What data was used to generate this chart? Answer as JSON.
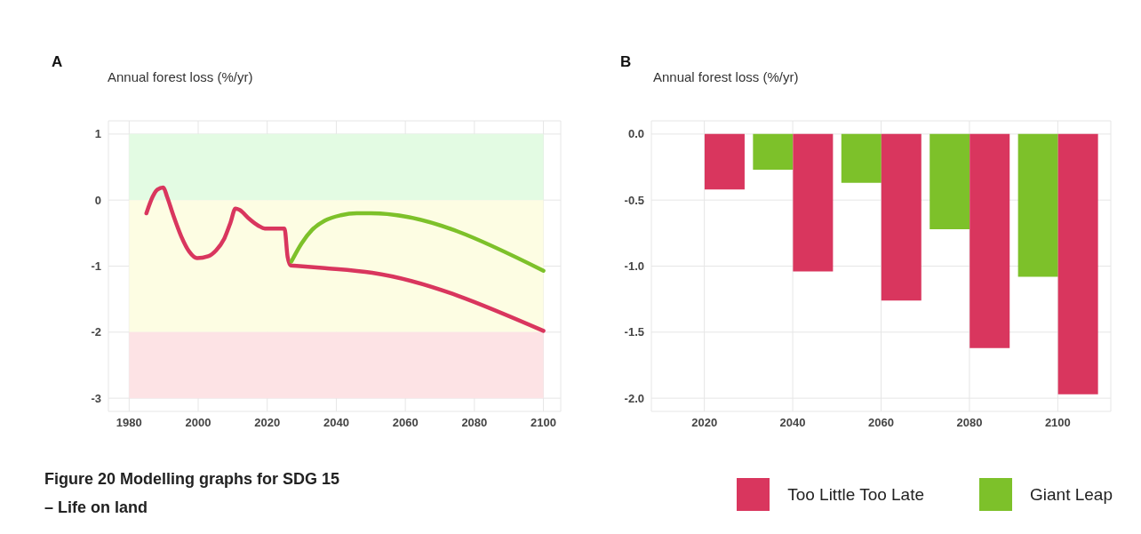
{
  "chart_data": [
    {
      "type": "line",
      "title": "A",
      "ylabel": "Annual forest loss (%/yr)",
      "annotations": [
        "Figure 20 Modelling graphs for SDG 15\n– Life on land"
      ],
      "series": [
        {
          "color": "#d9365e",
          "x": [
            1985,
            1986.8,
            1988.2,
            1989.9,
            1991,
            1992.8,
            1995.1,
            1997.4,
            1999.7,
            2002.9,
            2005.2,
            2007.5,
            2009.3,
            2010.8,
            2012,
            2014.7,
            2017.5,
            2019.3,
            2025,
            2025.9,
            2026.8,
            2029.4,
            2036.7,
            2050.4,
            2100
          ],
          "values": [
            -0.2,
            0.05,
            0.16,
            0.19,
            0.05,
            -0.23,
            -0.55,
            -0.78,
            -0.88,
            -0.85,
            -0.76,
            -0.59,
            -0.35,
            -0.13,
            -0.15,
            -0.28,
            -0.39,
            -0.43,
            -0.43,
            -0.86,
            -0.99,
            -1.0,
            -1.03,
            -1.1,
            -1.98
          ]
        },
        {
          "color": "#7dc12a",
          "x": [
            2027,
            2029.9,
            2033,
            2036.7,
            2041.3,
            2045.9,
            2050,
            2100
          ],
          "values": [
            -0.93,
            -0.66,
            -0.45,
            -0.31,
            -0.23,
            -0.2,
            -0.2,
            -1.07
          ]
        }
      ],
      "bands": [
        {
          "axis": "y",
          "from": 0,
          "to": 1,
          "color": "#e3fbe3"
        },
        {
          "axis": "y",
          "from": -2,
          "to": 0,
          "color": "#fdfde3"
        },
        {
          "axis": "y",
          "from": -3,
          "to": -2,
          "color": "#fde3e5"
        }
      ],
      "xlim": [
        1974,
        2105
      ],
      "xticks": [
        1980,
        2000,
        2020,
        2040,
        2060,
        2080,
        2100
      ],
      "ylim": [
        -3.2,
        1.2
      ],
      "yticks": [
        -3,
        -2,
        -1,
        0,
        1
      ],
      "grid": true,
      "marker": "none",
      "line_style": "solid"
    },
    {
      "type": "bar",
      "title": "B",
      "ylabel": "Annual forest loss (%/yr)",
      "x": [
        2020,
        2040,
        2060,
        2080,
        2100
      ],
      "series": [
        {
          "name": "Too Little Too Late",
          "color": "#d9365e",
          "values": [
            -0.42,
            -1.04,
            -1.26,
            -1.62,
            -1.97
          ]
        },
        {
          "name": "Giant Leap",
          "color": "#7dc12a",
          "values": [
            null,
            -0.27,
            -0.37,
            -0.72,
            -1.08
          ]
        }
      ],
      "xlim": [
        2008,
        2112
      ],
      "xticks": [
        2020,
        2040,
        2060,
        2080,
        2100
      ],
      "ylim": [
        -2.1,
        0.1
      ],
      "yticks": [
        {
          "value": -2,
          "label": "-2.0"
        },
        {
          "value": -1.5,
          "label": "-1.5"
        },
        {
          "value": -1,
          "label": "-1.0"
        },
        {
          "value": -0.5,
          "label": "-0.5"
        },
        {
          "value": 0,
          "label": "0.0"
        }
      ],
      "grid": true,
      "legend": "bottom right"
    }
  ]
}
